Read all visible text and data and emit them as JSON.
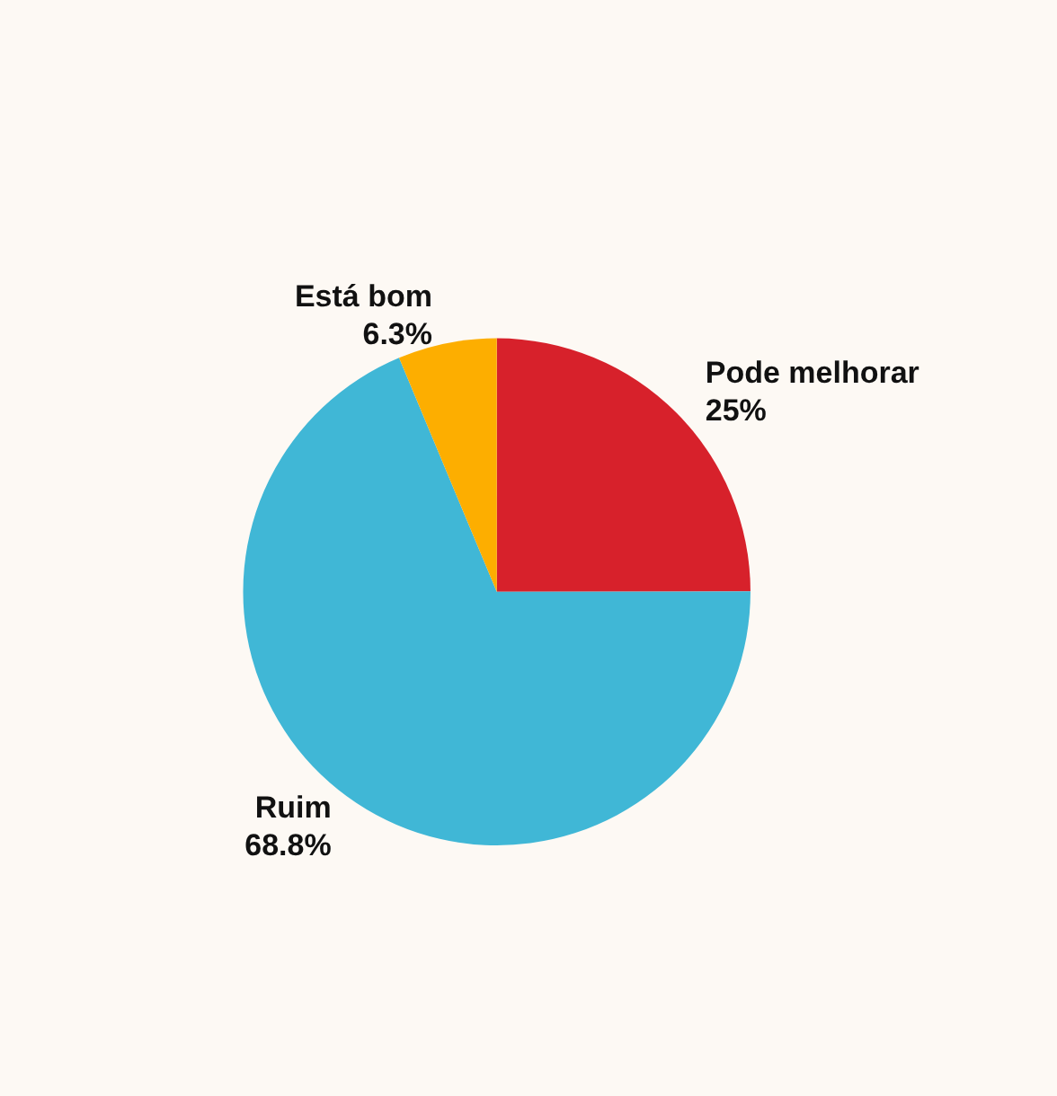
{
  "chart_data": {
    "type": "pie",
    "categories": [
      "Pode melhorar",
      "Ruim",
      "Está bom"
    ],
    "values": [
      25,
      68.8,
      6.3
    ],
    "colors": [
      "#d7212b",
      "#40b7d6",
      "#fdae00"
    ],
    "value_labels": [
      "25%",
      "68.8%",
      "6.3%"
    ]
  }
}
